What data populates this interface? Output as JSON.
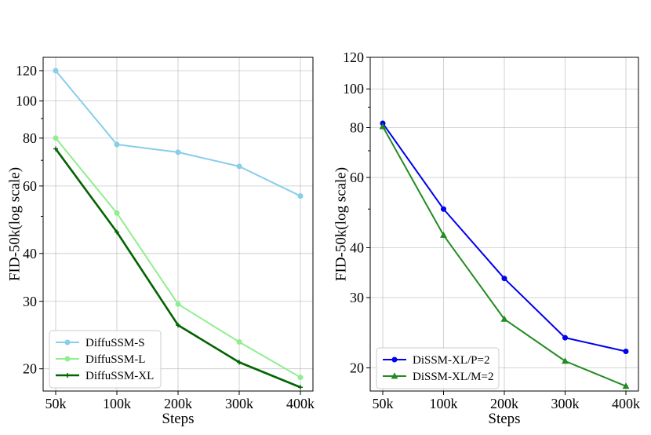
{
  "chart_data": [
    {
      "type": "line",
      "title": "",
      "xlabel": "Steps",
      "ylabel": "FID-50k(log scale)",
      "yscale": "log",
      "ylim": [
        17.5,
        130
      ],
      "categories": [
        "50k",
        "100k",
        "200k",
        "300k",
        "400k"
      ],
      "yticks": [
        20,
        30,
        40,
        60,
        80,
        100,
        120
      ],
      "ytick_labels": [
        "20",
        "30",
        "40",
        "60",
        "80",
        "100",
        "120"
      ],
      "legend_position": "lower-left",
      "series": [
        {
          "name": "DiffuSSM-S",
          "color": "#87ceeb",
          "marker": "circle",
          "values": [
            120,
            77,
            73.5,
            67.5,
            56.5
          ]
        },
        {
          "name": "DiffuSSM-L",
          "color": "#90ee90",
          "marker": "circle",
          "values": [
            80,
            51,
            29.5,
            23.5,
            19
          ]
        },
        {
          "name": "DiffuSSM-XL",
          "color": "#006400",
          "marker": "plus",
          "values": [
            75,
            45.5,
            26,
            20.8,
            17.9
          ]
        }
      ]
    },
    {
      "type": "line",
      "title": "",
      "xlabel": "Steps",
      "ylabel": "FID-50k(log scale)",
      "yscale": "log",
      "ylim": [
        17.5,
        120
      ],
      "categories": [
        "50k",
        "100k",
        "200k",
        "300k",
        "400k"
      ],
      "yticks": [
        20,
        30,
        40,
        60,
        80,
        100,
        120
      ],
      "ytick_labels": [
        "20",
        "30",
        "40",
        "60",
        "80",
        "100",
        "120"
      ],
      "legend_position": "lower-left",
      "series": [
        {
          "name": "DiSSM-XL/P=2",
          "color": "#0000ee",
          "marker": "circle",
          "values": [
            82,
            50,
            33.5,
            23.8,
            22
          ]
        },
        {
          "name": "DiSSM-XL/M=2",
          "color": "#228b22",
          "marker": "triangle",
          "values": [
            80.5,
            43,
            26.5,
            20.8,
            18
          ]
        }
      ]
    }
  ]
}
